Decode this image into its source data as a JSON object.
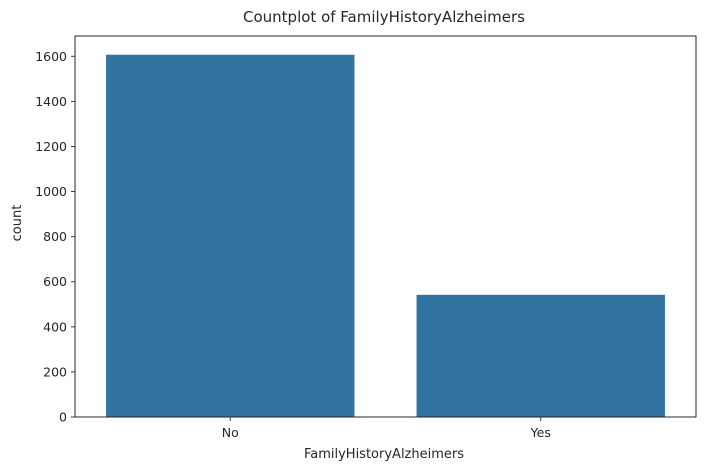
{
  "chart_data": {
    "type": "bar",
    "title": "Countplot of FamilyHistoryAlzheimers",
    "xlabel": "FamilyHistoryAlzheimers",
    "ylabel": "count",
    "categories": [
      "No",
      "Yes"
    ],
    "values": [
      1607,
      542
    ],
    "ylim": [
      0,
      1690
    ],
    "yticks": [
      0,
      200,
      400,
      600,
      800,
      1000,
      1200,
      1400,
      1600
    ],
    "grid": false,
    "legend": "none",
    "bar_color": "#3274a1"
  }
}
